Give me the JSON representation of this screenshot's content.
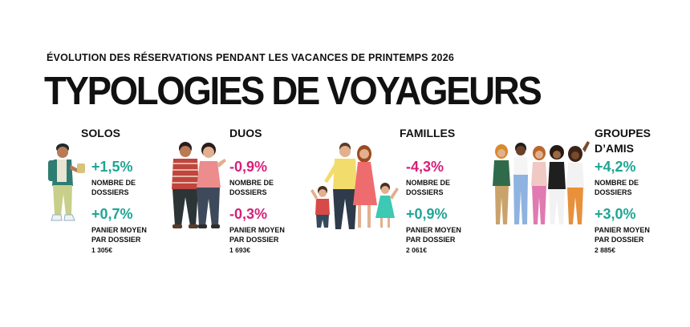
{
  "header": {
    "subtitle": "ÉVOLUTION DES RÉSERVATIONS PENDANT LES VACANCES DE PRINTEMPS 2026",
    "title": "TYPOLOGIES DE VOYAGEURS"
  },
  "segments": [
    {
      "name": "SOLOS",
      "bookings_pct": "+1,5%",
      "bookings_label_1": "NOMBRE DE",
      "bookings_label_2": "DOSSIERS",
      "basket_pct": "+0,7%",
      "basket_label_1": "PANIER MOYEN",
      "basket_label_2": "PAR DOSSIER",
      "basket_amount": "1 305€",
      "bookings_color": "#1fa595",
      "basket_color": "#1fa595"
    },
    {
      "name": "DUOS",
      "bookings_pct": "-0,9%",
      "bookings_label_1": "NOMBRE DE",
      "bookings_label_2": "DOSSIERS",
      "basket_pct": "-0,3%",
      "basket_label_1": "PANIER MOYEN",
      "basket_label_2": "PAR DOSSIER",
      "basket_amount": "1 693€",
      "bookings_color": "#d61f7a",
      "basket_color": "#d61f7a"
    },
    {
      "name": "FAMILLES",
      "bookings_pct": "-4,3%",
      "bookings_label_1": "NOMBRE DE",
      "bookings_label_2": "DOSSIERS",
      "basket_pct": "+0,9%",
      "basket_label_1": "PANIER MOYEN",
      "basket_label_2": "PAR DOSSIER",
      "basket_amount": "2 061€",
      "bookings_color": "#d61f7a",
      "basket_color": "#1fa595"
    },
    {
      "name_line_1": "GROUPES",
      "name_line_2": "D’AMIS",
      "bookings_pct": "+4,2%",
      "bookings_label_1": "NOMBRE DE",
      "bookings_label_2": "DOSSIERS",
      "basket_pct": "+3,0%",
      "basket_label_1": "PANIER MOYEN",
      "basket_label_2": "PAR DOSSIER",
      "basket_amount": "2 885€",
      "bookings_color": "#1fa595",
      "basket_color": "#1fa595"
    }
  ]
}
